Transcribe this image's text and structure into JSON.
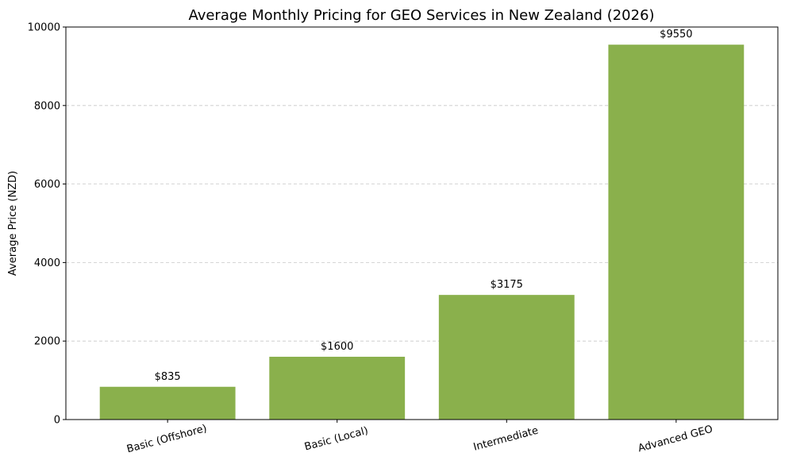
{
  "chart_data": {
    "type": "bar",
    "title": "Average Monthly Pricing for GEO Services in New Zealand (2026)",
    "xlabel": "",
    "ylabel": "Average Price (NZD)",
    "categories": [
      "Basic (Offshore)",
      "Basic (Local)",
      "Intermediate",
      "Advanced GEO"
    ],
    "values": [
      835,
      1600,
      3175,
      9550
    ],
    "data_labels": [
      "$835",
      "$1600",
      "$3175",
      "$9550"
    ],
    "ylim": [
      0,
      10000
    ],
    "yticks": [
      0,
      2000,
      4000,
      6000,
      8000,
      10000
    ],
    "grid": "y-dashed",
    "bar_color": "#8ab04c"
  }
}
